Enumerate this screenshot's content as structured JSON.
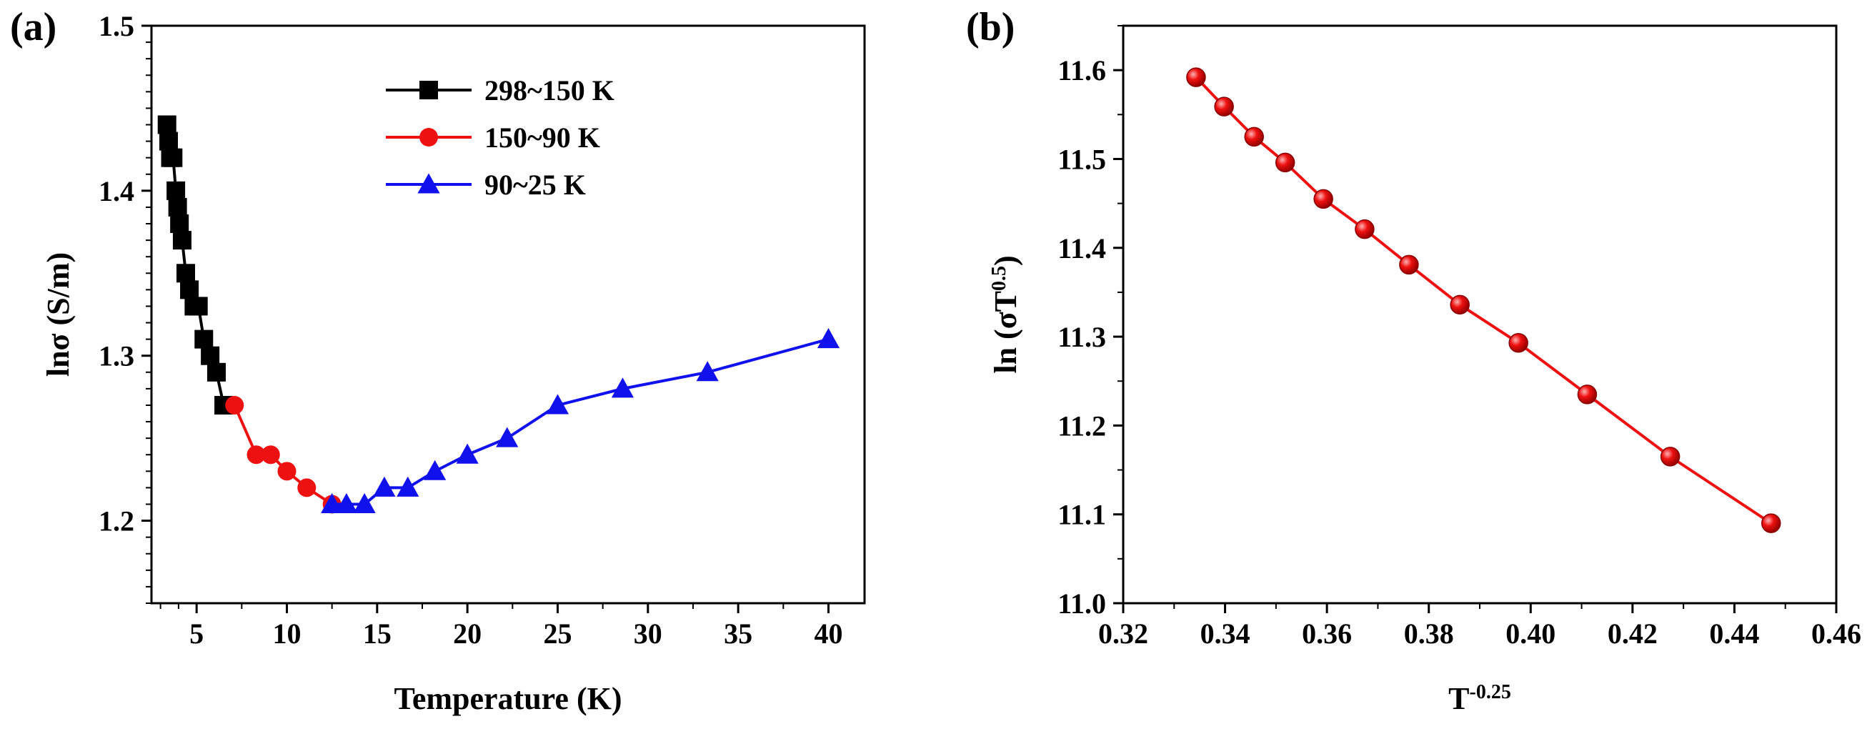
{
  "figure": {
    "panels": [
      {
        "label": "(a)"
      },
      {
        "label": "(b)"
      }
    ]
  },
  "chart_data": [
    {
      "type": "line",
      "panel": "(a)",
      "xlabel": "Temperature (K)",
      "ylabel": "lnσ (S/m)",
      "xlim": [
        2.5,
        42
      ],
      "ylim": [
        1.15,
        1.5
      ],
      "xticks": [
        5,
        10,
        15,
        20,
        25,
        30,
        35,
        40
      ],
      "yticks": [
        1.2,
        1.3,
        1.4,
        1.5
      ],
      "grid": false,
      "legend": "top-center",
      "series": [
        {
          "name": "298~150 K",
          "color": "#000000",
          "marker": "square",
          "x": [
            3.36,
            3.45,
            3.55,
            3.7,
            3.85,
            3.95,
            4.05,
            4.2,
            4.4,
            4.6,
            4.85,
            5.1,
            5.4,
            5.75,
            6.1,
            6.5
          ],
          "y": [
            1.44,
            1.43,
            1.42,
            1.42,
            1.4,
            1.39,
            1.38,
            1.37,
            1.35,
            1.34,
            1.33,
            1.33,
            1.31,
            1.3,
            1.29,
            1.27
          ]
        },
        {
          "name": "150~90 K",
          "color": "#ee1111",
          "marker": "circle",
          "x": [
            7.1,
            8.3,
            9.1,
            10.0,
            11.1,
            12.5
          ],
          "y": [
            1.27,
            1.24,
            1.24,
            1.23,
            1.22,
            1.21
          ]
        },
        {
          "name": "90~25 K",
          "color": "#1111ee",
          "marker": "triangle",
          "x": [
            12.5,
            13.3,
            14.3,
            15.4,
            16.7,
            18.2,
            20.0,
            22.2,
            25.0,
            28.6,
            33.3,
            40.0
          ],
          "y": [
            1.21,
            1.21,
            1.21,
            1.22,
            1.22,
            1.23,
            1.24,
            1.25,
            1.27,
            1.28,
            1.29,
            1.31
          ]
        }
      ]
    },
    {
      "type": "line",
      "panel": "(b)",
      "xlabel": "T",
      "xlabel_sup": "-0.25",
      "ylabel": "ln (σT",
      "ylabel_sup": "0.5",
      "ylabel_end": ")",
      "xlim": [
        0.32,
        0.46
      ],
      "ylim": [
        11.0,
        11.65
      ],
      "xticks": [
        "0.32",
        "0.34",
        "0.36",
        "0.38",
        "0.40",
        "0.42",
        "0.44",
        "0.46"
      ],
      "yticks": [
        "11.0",
        "11.1",
        "11.2",
        "11.3",
        "11.4",
        "11.5",
        "11.6"
      ],
      "grid": false,
      "series": [
        {
          "color": "#ee1111",
          "marker": "sphere",
          "x": [
            0.3343,
            0.3398,
            0.3457,
            0.3518,
            0.3593,
            0.3674,
            0.3761,
            0.3861,
            0.3976,
            0.4111,
            0.4274,
            0.4472
          ],
          "y": [
            11.592,
            11.559,
            11.525,
            11.496,
            11.455,
            11.421,
            11.381,
            11.336,
            11.293,
            11.235,
            11.165,
            11.09
          ]
        }
      ]
    }
  ]
}
